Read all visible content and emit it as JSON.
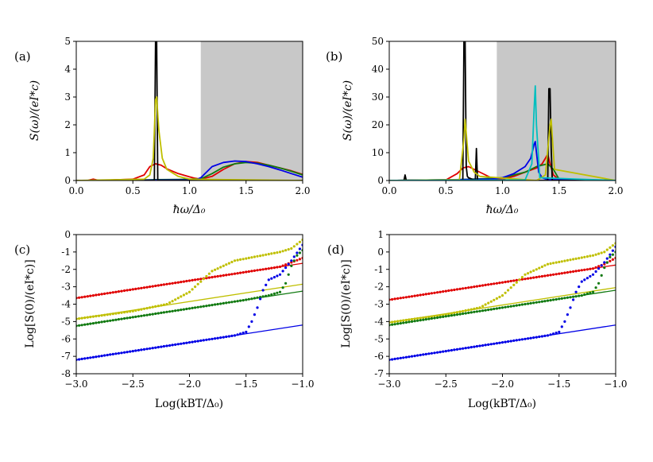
{
  "colors": {
    "black": "#000000",
    "yellow": "#bfbf00",
    "red": "#e00000",
    "green": "#117a11",
    "blue": "#0000e6",
    "cyan": "#00bfbf",
    "shade": "#c8c8c8"
  },
  "chart_data": [
    {
      "id": "a",
      "type": "line",
      "panel_label": "(a)",
      "xlabel": "ħω/Δ₀",
      "ylabel": "S(ω)/(eI*c)",
      "xlim": [
        0,
        2
      ],
      "ylim": [
        0,
        5
      ],
      "xticks": [
        0,
        0.5,
        1,
        1.5,
        2
      ],
      "xtick_labels": [
        "0.0",
        "0.5",
        "1.0",
        "1.5",
        "2.0"
      ],
      "yticks": [
        0,
        1,
        2,
        3,
        4,
        5
      ],
      "ytick_labels": [
        "0",
        "1",
        "2",
        "3",
        "4",
        "5"
      ],
      "shaded_region": [
        1.1,
        2.0
      ],
      "series": [
        {
          "name": "red",
          "color": "red",
          "x": [
            0,
            0.1,
            0.15,
            0.2,
            0.5,
            0.6,
            0.65,
            0.7,
            0.75,
            0.8,
            0.9,
            1.0,
            1.05,
            1.1,
            1.2,
            1.3,
            1.4,
            1.5,
            1.6,
            1.7,
            1.8,
            1.9,
            2.0
          ],
          "y": [
            0,
            0,
            0.05,
            0,
            0.05,
            0.2,
            0.5,
            0.6,
            0.55,
            0.42,
            0.25,
            0.13,
            0.08,
            0.05,
            0.15,
            0.4,
            0.6,
            0.68,
            0.65,
            0.55,
            0.45,
            0.35,
            0.22
          ]
        },
        {
          "name": "green",
          "color": "green",
          "x": [
            0,
            0.6,
            0.7,
            0.9,
            1.1,
            1.2,
            1.3,
            1.4,
            1.5,
            1.6,
            1.7,
            1.8,
            1.9,
            2.0
          ],
          "y": [
            0,
            0.02,
            0.03,
            0.04,
            0.06,
            0.25,
            0.48,
            0.6,
            0.65,
            0.62,
            0.55,
            0.45,
            0.33,
            0.2
          ]
        },
        {
          "name": "blue",
          "color": "blue",
          "x": [
            0,
            1.05,
            1.1,
            1.15,
            1.2,
            1.3,
            1.4,
            1.5,
            1.6,
            1.7,
            1.8,
            1.9,
            2.0
          ],
          "y": [
            0,
            0.02,
            0.1,
            0.3,
            0.5,
            0.65,
            0.7,
            0.68,
            0.6,
            0.5,
            0.38,
            0.25,
            0.12
          ]
        },
        {
          "name": "black",
          "color": "black",
          "x": [
            0,
            0.69,
            0.7,
            0.705,
            0.71,
            0.72,
            2.0
          ],
          "y": [
            0,
            0,
            5,
            5,
            5,
            0,
            0
          ]
        },
        {
          "name": "yellow",
          "color": "yellow",
          "x": [
            0,
            0.6,
            0.65,
            0.68,
            0.7,
            0.71,
            0.73,
            0.76,
            0.8,
            0.9,
            1.0,
            2.0
          ],
          "y": [
            0,
            0.05,
            0.2,
            0.8,
            2.9,
            3.0,
            1.8,
            0.8,
            0.4,
            0.15,
            0.05,
            0
          ]
        }
      ]
    },
    {
      "id": "b",
      "type": "line",
      "panel_label": "(b)",
      "xlabel": "ħω/Δ₀",
      "ylabel": "S(ω)/(eI*c)",
      "xlim": [
        0,
        2
      ],
      "ylim": [
        0,
        50
      ],
      "xticks": [
        0,
        0.5,
        1,
        1.5,
        2
      ],
      "xtick_labels": [
        "0.0",
        "0.5",
        "1.0",
        "1.5",
        "2.0"
      ],
      "yticks": [
        0,
        10,
        20,
        30,
        40,
        50
      ],
      "ytick_labels": [
        "0",
        "10",
        "20",
        "30",
        "40",
        "50"
      ],
      "shaded_region": [
        0.95,
        2.0
      ],
      "series": [
        {
          "name": "red",
          "color": "red",
          "x": [
            0,
            0.5,
            0.6,
            0.65,
            0.7,
            0.8,
            0.9,
            0.95,
            1.0,
            1.1,
            1.2,
            1.3,
            1.35,
            1.38,
            1.4,
            1.42,
            1.45,
            1.5,
            2.0
          ],
          "y": [
            0,
            0.2,
            2.5,
            4.5,
            5,
            3,
            1,
            0.5,
            0.5,
            1.5,
            3,
            4.5,
            6,
            8,
            9.5,
            6,
            2,
            0.3,
            0
          ]
        },
        {
          "name": "green",
          "color": "green",
          "x": [
            0,
            0.6,
            0.8,
            1.0,
            1.2,
            1.3,
            1.35,
            1.4,
            1.45,
            1.5,
            2.0
          ],
          "y": [
            0,
            0.3,
            0.6,
            1,
            3,
            5,
            5.5,
            6,
            4,
            0.5,
            0
          ]
        },
        {
          "name": "blue",
          "color": "blue",
          "x": [
            0,
            0.9,
            1.0,
            1.1,
            1.2,
            1.25,
            1.28,
            1.29,
            1.3,
            1.32,
            1.35,
            1.4,
            2.0
          ],
          "y": [
            0,
            0.5,
            1,
            2.5,
            5,
            8,
            13,
            14,
            10,
            3,
            1,
            0.3,
            0
          ]
        },
        {
          "name": "black",
          "color": "black",
          "x": [
            0,
            0.13,
            0.14,
            0.15,
            0.65,
            0.66,
            0.67,
            0.68,
            0.69,
            0.7,
            0.76,
            0.77,
            0.78,
            1.4,
            1.41,
            1.42,
            1.43,
            1.44,
            2.0
          ],
          "y": [
            0,
            0,
            2,
            0,
            0,
            50,
            50,
            5,
            1.5,
            1,
            0,
            11.5,
            0,
            0,
            33,
            33,
            12,
            0,
            0
          ]
        },
        {
          "name": "yellow",
          "color": "yellow",
          "x": [
            0,
            0.62,
            0.66,
            0.67,
            0.7,
            0.75,
            0.8,
            1.3,
            1.38,
            1.42,
            1.43,
            1.46,
            2.0
          ],
          "y": [
            0,
            0.3,
            15,
            22,
            7,
            3,
            1.5,
            0,
            2,
            20,
            22,
            4,
            0
          ]
        },
        {
          "name": "cyan",
          "color": "cyan",
          "x": [
            0,
            1.2,
            1.26,
            1.28,
            1.29,
            1.3,
            1.33,
            2.0
          ],
          "y": [
            0,
            0.2,
            6,
            26,
            34,
            20,
            1,
            0
          ]
        }
      ]
    },
    {
      "id": "c",
      "type": "scatter",
      "panel_label": "(c)",
      "xlabel": "Log(kBT/Δ₀)",
      "ylabel": "Log[S(0)/(eI*c)]",
      "xlim": [
        -3,
        -1
      ],
      "ylim": [
        -8,
        0
      ],
      "xticks": [
        -3,
        -2.5,
        -2,
        -1.5,
        -1
      ],
      "xtick_labels": [
        "−3.0",
        "−2.5",
        "−2.0",
        "−1.5",
        "−1.0"
      ],
      "yticks": [
        0,
        -1,
        -2,
        -3,
        -4,
        -5,
        -6,
        -7,
        -8
      ],
      "ytick_labels": [
        "0",
        "-1",
        "-2",
        "-3",
        "-4",
        "-5",
        "-6",
        "-7",
        "-8"
      ],
      "series": [
        {
          "name": "red",
          "color": "red",
          "line": [
            [
              -3,
              -3.65
            ],
            [
              -1,
              -1.65
            ]
          ],
          "dots": [
            [
              -3,
              -3.65
            ],
            [
              -2.5,
              -3.15
            ],
            [
              -2,
              -2.65
            ],
            [
              -1.5,
              -2.15
            ],
            [
              -1.3,
              -1.95
            ],
            [
              -1.2,
              -1.85
            ],
            [
              -1.1,
              -1.6
            ],
            [
              -1,
              -1.35
            ]
          ]
        },
        {
          "name": "yellow",
          "color": "yellow",
          "line": [
            [
              -3,
              -4.85
            ],
            [
              -1,
              -2.85
            ]
          ],
          "dots": [
            [
              -3,
              -4.85
            ],
            [
              -2.5,
              -4.4
            ],
            [
              -2.2,
              -4.0
            ],
            [
              -2.0,
              -3.3
            ],
            [
              -1.8,
              -2.1
            ],
            [
              -1.6,
              -1.5
            ],
            [
              -1.4,
              -1.25
            ],
            [
              -1.2,
              -1.0
            ],
            [
              -1.1,
              -0.8
            ],
            [
              -1,
              -0.3
            ]
          ]
        },
        {
          "name": "green",
          "color": "green",
          "line": [
            [
              -3,
              -5.25
            ],
            [
              -1,
              -3.25
            ]
          ],
          "dots": [
            [
              -3,
              -5.25
            ],
            [
              -2.5,
              -4.75
            ],
            [
              -2,
              -4.25
            ],
            [
              -1.5,
              -3.75
            ],
            [
              -1.3,
              -3.5
            ],
            [
              -1.2,
              -3.3
            ],
            [
              -1.15,
              -2.8
            ],
            [
              -1.1,
              -1.8
            ],
            [
              -1.05,
              -1.2
            ],
            [
              -1,
              -0.9
            ]
          ]
        },
        {
          "name": "blue",
          "color": "blue",
          "line": [
            [
              -3,
              -7.2
            ],
            [
              -1,
              -5.2
            ]
          ],
          "dots": [
            [
              -3,
              -7.2
            ],
            [
              -2.5,
              -6.7
            ],
            [
              -2,
              -6.2
            ],
            [
              -1.6,
              -5.8
            ],
            [
              -1.5,
              -5.6
            ],
            [
              -1.45,
              -5.0
            ],
            [
              -1.4,
              -4.2
            ],
            [
              -1.35,
              -3.2
            ],
            [
              -1.3,
              -2.6
            ],
            [
              -1.2,
              -2.3
            ],
            [
              -1.1,
              -1.5
            ],
            [
              -1,
              -0.6
            ]
          ]
        }
      ]
    },
    {
      "id": "d",
      "type": "scatter",
      "panel_label": "(d)",
      "xlabel": "Log(kBT/Δ₀)",
      "ylabel": "Log[S(0)/(eI*c)]",
      "xlim": [
        -3,
        -1
      ],
      "ylim": [
        -7,
        1
      ],
      "xticks": [
        -3,
        -2.5,
        -2,
        -1.5,
        -1
      ],
      "xtick_labels": [
        "−3.0",
        "−2.5",
        "−2.0",
        "−1.5",
        "−1.0"
      ],
      "yticks": [
        1,
        0,
        -1,
        -2,
        -3,
        -4,
        -5,
        -6,
        -7
      ],
      "ytick_labels": [
        "1",
        "0",
        "-1",
        "-2",
        "-3",
        "-4",
        "-5",
        "-6",
        "-7"
      ],
      "series": [
        {
          "name": "red",
          "color": "red",
          "line": [
            [
              -3,
              -2.75
            ],
            [
              -1,
              -0.75
            ]
          ],
          "dots": [
            [
              -3,
              -2.75
            ],
            [
              -2.5,
              -2.25
            ],
            [
              -2,
              -1.75
            ],
            [
              -1.5,
              -1.25
            ],
            [
              -1.3,
              -1.05
            ],
            [
              -1.2,
              -0.95
            ],
            [
              -1.1,
              -0.7
            ],
            [
              -1,
              -0.35
            ]
          ]
        },
        {
          "name": "yellow",
          "color": "yellow",
          "line": [
            [
              -3,
              -4.05
            ],
            [
              -1,
              -2.05
            ]
          ],
          "dots": [
            [
              -3,
              -4.05
            ],
            [
              -2.5,
              -3.6
            ],
            [
              -2.2,
              -3.2
            ],
            [
              -2.0,
              -2.5
            ],
            [
              -1.8,
              -1.3
            ],
            [
              -1.6,
              -0.7
            ],
            [
              -1.4,
              -0.45
            ],
            [
              -1.2,
              -0.2
            ],
            [
              -1.1,
              0.0
            ],
            [
              -1,
              0.5
            ]
          ]
        },
        {
          "name": "green",
          "color": "green",
          "line": [
            [
              -3,
              -4.2
            ],
            [
              -1,
              -2.2
            ]
          ],
          "dots": [
            [
              -3,
              -4.2
            ],
            [
              -2.5,
              -3.7
            ],
            [
              -2,
              -3.2
            ],
            [
              -1.5,
              -2.7
            ],
            [
              -1.3,
              -2.5
            ],
            [
              -1.2,
              -2.3
            ],
            [
              -1.15,
              -1.8
            ],
            [
              -1.1,
              -0.9
            ],
            [
              -1.05,
              -0.3
            ],
            [
              -1,
              0.0
            ]
          ]
        },
        {
          "name": "blue",
          "color": "blue",
          "line": [
            [
              -3,
              -6.2
            ],
            [
              -1,
              -4.2
            ]
          ],
          "dots": [
            [
              -3,
              -6.2
            ],
            [
              -2.5,
              -5.7
            ],
            [
              -2,
              -5.2
            ],
            [
              -1.6,
              -4.8
            ],
            [
              -1.5,
              -4.6
            ],
            [
              -1.45,
              -4.0
            ],
            [
              -1.4,
              -3.2
            ],
            [
              -1.35,
              -2.3
            ],
            [
              -1.3,
              -1.7
            ],
            [
              -1.2,
              -1.3
            ],
            [
              -1.1,
              -0.6
            ],
            [
              -1,
              0.3
            ]
          ]
        }
      ]
    }
  ]
}
